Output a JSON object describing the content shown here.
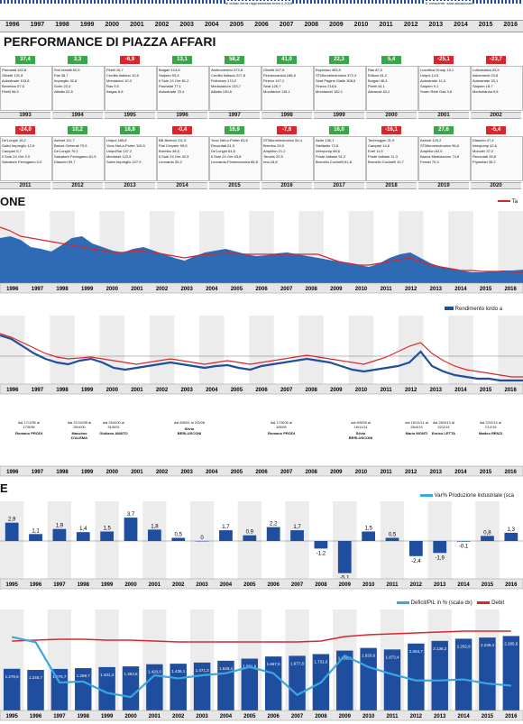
{
  "header_notes": {
    "left": "di dollari verrà rappresentato entro il 2018",
    "right": "E crescente: sarà attualizzato"
  },
  "years_top": [
    "1996",
    "1997",
    "1998",
    "1999",
    "2000",
    "2001",
    "2002",
    "2003",
    "2004",
    "2005",
    "2006",
    "2007",
    "2008",
    "2009",
    "2010",
    "2011",
    "2012",
    "2013",
    "2014",
    "2015",
    "2016"
  ],
  "perf": {
    "title": "PERFORMANCE DI PIAZZA AFFARI",
    "row1": [
      {
        "year": "1993",
        "value": "37,4",
        "pos": true,
        "items": [
          "Parmalat 152,8",
          "Olivetti 131,8",
          "Autostrade 103,8",
          "Benetton 97,6",
          "Pirelli 96,9"
        ]
      },
      {
        "year": "1994",
        "value": "3,3",
        "pos": true,
        "items": [
          "Smi metalli 52,9",
          "Fiat 38,7",
          "Impregilo 32,8",
          "Sorin 23,4",
          "Alitalia 22,8"
        ]
      },
      {
        "year": "1995",
        "value": "-6,9",
        "pos": false,
        "items": [
          "Pirelli 16,7",
          "Credito Italiano 10,5",
          "Mondadori 10,3",
          "Ras 9,5",
          "Italgas 8,8"
        ]
      },
      {
        "year": "1996",
        "value": "13,1",
        "pos": true,
        "items": [
          "Bulgari 124,8",
          "Saipem 93,4",
          "Il Sole 24 Ore 81,2",
          "Parmalat 77,1",
          "Autostrade 70,4"
        ]
      },
      {
        "year": "1997",
        "value": "58,2",
        "pos": true,
        "items": [
          "Ambroveneto 373,8",
          "Credito Italiano 227,8",
          "Fideuram 174,2",
          "Mediolanum 133,7",
          "Alitalia 130,8"
        ]
      },
      {
        "year": "1998",
        "value": "41,0",
        "pos": true,
        "items": [
          "Olivetti 527,6",
          "Finmeccanica 188,5",
          "Fineco 147,1",
          "Seat 126,7",
          "Mondadori 118,1"
        ]
      },
      {
        "year": "1999",
        "value": "22,3",
        "pos": true,
        "items": [
          "Espresso 453,5",
          "STMicroelectronics 372,3",
          "Seat Pagine Gialle 308,5",
          "Fineco 218,6",
          "Mondadori 182,1"
        ]
      },
      {
        "year": "2000",
        "value": "5,4",
        "pos": true,
        "items": [
          "Ras 87,0",
          "Edison 81,2",
          "Bulgari 48,3",
          "Pirelli 44,1",
          "Alleanza 40,2"
        ]
      },
      {
        "year": "2001",
        "value": "-25,1",
        "pos": false,
        "items": [
          "Luxottica Group 19,1",
          "Unipol 14,5",
          "Autostrade 11,0",
          "Saipem 9,1",
          "Snam Rete Gas 3,6"
        ]
      },
      {
        "year": "2002",
        "value": "-23,7",
        "pos": false,
        "items": [
          "Lottomatica 33,5",
          "Italcementi 23,8",
          "Autostrade 20,1",
          "Saipem 18,7",
          "Mediobanca 9,8"
        ]
      }
    ],
    "row2": [
      {
        "year": "2011",
        "value": "-24,0",
        "pos": false,
        "items": [
          "De'Longhi 16,2",
          "Salini Impregilo 12,9",
          "Campari 5,7",
          "Il Sole 24 Ore 2,0",
          "Salvatore Ferragamo 0,0"
        ]
      },
      {
        "year": "2012",
        "value": "10,2",
        "pos": true,
        "items": [
          "Azimut 111,7",
          "Banca Generali 79,5",
          "De'Longhi 76,1",
          "Salvatore Ferragamo 61,5",
          "Diasorin 59,7"
        ]
      },
      {
        "year": "2013",
        "value": "18,8",
        "pos": true,
        "items": [
          "Unipol 185,8",
          "Yoox Net-a-Porter 115,5",
          "UnipolSai 147,2",
          "Mediaset 123,5",
          "Salini Impregilo 107,9"
        ]
      },
      {
        "year": "2014",
        "value": "-0,4",
        "pos": false,
        "items": [
          "BB Biotech 111,5",
          "Fiat Chrysler 99,5",
          "Brembo 48,5",
          "Il Sole 24 Ore 42,5",
          "Leonardo 35,2"
        ]
      },
      {
        "year": "2015",
        "value": "16,9",
        "pos": true,
        "items": [
          "Yoox Net-a-Porter 81,8",
          "Recordati 61,5",
          "De'Longhi 64,8",
          "Il Sole 24 Ore 63,8",
          "Leonardo-Finmeccanica 68,8"
        ]
      },
      {
        "year": "2016",
        "value": "-7,6",
        "pos": false,
        "items": [
          "STMicroelectronics 54,4",
          "Brembo 29,5",
          "Amplifon 21,2",
          "Tenaris 20,5",
          "Ima 18,8"
        ]
      },
      {
        "year": "2017",
        "value": "16,0",
        "pos": true,
        "items": [
          "Astm 136,1",
          "Stellantis 72,8",
          "Interpump 68,6",
          "Poste Italiane 51,2",
          "Brunello Cucinelli 61,8"
        ]
      },
      {
        "year": "2018",
        "value": "-16,1",
        "pos": false,
        "items": [
          "Technogym 31,9",
          "Campari 14,6",
          "Enel 11,5",
          "Poste Italiane 11,3",
          "Brunello Cucinelli 10,7"
        ]
      },
      {
        "year": "2019",
        "value": "27,6",
        "pos": true,
        "items": [
          "Azimut 125,2",
          "STMicroelectronics 96,8",
          "Amplifon 82,5",
          "Banca Mediolanum 74,8",
          "Ferrari 70,4"
        ]
      },
      {
        "year": "2020",
        "value": "-5,4",
        "pos": false,
        "items": [
          "Diasorin 47,4",
          "Interpump 42,6",
          "Moncler 37,2",
          "Recordati 35,8",
          "Prysmian 35,2"
        ]
      }
    ]
  },
  "section2": {
    "title": "ONE",
    "legend": "Ta"
  },
  "section3": {
    "legend": "Rendimento lordo a"
  },
  "governments": [
    {
      "dates": "dal 17/1/95 al 17/5/96",
      "name": "Romano PRODI"
    },
    {
      "dates": "dal 21/10/98 al 25/4/00",
      "name": "Massimo D'ALEMA"
    },
    {
      "dates": "dal 26/4/00 al 31/5/01",
      "name": "Giuliano AMATO"
    },
    {
      "dates": "dal 8/6/01 al 2/5/06",
      "name": "Silvio BERLUSCONI"
    },
    {
      "dates": "dal 17/5/06 al 6/5/08",
      "name": "Romano PRODI"
    },
    {
      "dates": "dal 8/5/08 al 16/11/11",
      "name": "Silvio BERLUSCONI"
    },
    {
      "dates": "dal 16/11/11 al 28/4/13",
      "name": "Mario MONTI"
    },
    {
      "dates": "dal 28/4/13 al 22/2/14",
      "name": "Enrico LETTA"
    },
    {
      "dates": "dal 22/2/14 al 7/12/16",
      "name": "Matteo RENZI"
    }
  ],
  "section4": {
    "title": "E",
    "legend": "Var% Produzione industriale (sca"
  },
  "section5": {
    "legend_left": "Deficit/PIL in % (scala dx)",
    "legend_right": "Debit"
  },
  "years_bottom": [
    "1995",
    "1996",
    "1997",
    "1998",
    "1999",
    "2000",
    "2001",
    "2002",
    "2003",
    "2004",
    "2005",
    "2006",
    "2007",
    "2008",
    "2009",
    "2010",
    "2011",
    "2012",
    "2013",
    "2014",
    "2015",
    "2016"
  ],
  "chart_data": [
    {
      "type": "bar",
      "title": "",
      "ylabel": "Var% Produzione industriale",
      "categories": [
        "1995",
        "1996",
        "1997",
        "1998",
        "1999",
        "2000",
        "2001",
        "2002",
        "2003",
        "2004",
        "2005",
        "2006",
        "2007",
        "2008",
        "2009",
        "2010",
        "2011",
        "2012",
        "2013",
        "2014",
        "2015",
        "2016"
      ],
      "values": [
        2.9,
        1.1,
        1.9,
        1.4,
        1.5,
        3.7,
        1.8,
        0.5,
        0,
        1.7,
        0.9,
        2.2,
        1.7,
        -1.2,
        -5.1,
        1.5,
        0.5,
        -2.4,
        -1.9,
        -0.1,
        0.8,
        1.3
      ],
      "labels": [
        "2,9",
        "1,1",
        "1,9",
        "1,4",
        "1,5",
        "3,7",
        "1,8",
        "0,5",
        "0",
        "1,7",
        "0,9",
        "2,2",
        "1,7",
        "-1,2",
        "-5,1",
        "1,5",
        "0,5",
        "-2,4",
        "-1,9",
        "-0,1",
        "0,8",
        "1,3"
      ],
      "colors": {
        "bar": "#1f4e9e",
        "accent": "#3aa7e0"
      }
    },
    {
      "type": "bar",
      "title": "",
      "categories": [
        "1995",
        "1996",
        "1997",
        "1998",
        "1999",
        "2000",
        "2001",
        "2002",
        "2003",
        "2004",
        "2005",
        "2006",
        "2007",
        "2008",
        "2009",
        "2010",
        "2011",
        "2012",
        "2013",
        "2014",
        "2015",
        "2016"
      ],
      "series": [
        {
          "name": "Debito",
          "values": [
            1279.6,
            1245.7,
            1275.7,
            1299.7,
            1331.3,
            1353.6,
            1420.0,
            1436.1,
            1471.3,
            1526.4,
            1591.6,
            1657.5,
            1677.8,
            1731.6,
            1838.2,
            1920.6,
            1873.4,
            2054.7,
            2136.2,
            2202.9,
            2239.4,
            2285.6
          ]
        },
        {
          "name": "Deficit/PIL in %",
          "values": [
            7.1,
            6.6,
            2.7,
            2.8,
            1.7,
            1.3,
            3.4,
            3.1,
            3.4,
            3.6,
            4.2,
            3.6,
            1.5,
            2.7,
            5.3,
            4.2,
            3.5,
            2.9,
            2.9,
            3.0,
            2.6,
            2.4
          ]
        }
      ],
      "labels": [
        "1.279,6",
        "1.245,7",
        "1.275,7",
        "1.299,7",
        "1.331,3",
        "1.353,6",
        "1.420,0",
        "1.436,1",
        "1.471,3",
        "1.526,4",
        "1.591,6",
        "1.657,5",
        "1.677,8",
        "1.731,6",
        "1.838,2",
        "1.920,6",
        "1.873,4",
        "2.054,7",
        "2.136,2",
        "2.202,9",
        "2.239,4",
        "2.285,6"
      ],
      "colors": {
        "bar": "#1f4e9e",
        "line": "#3aa7e0",
        "red": "#d9262c"
      }
    }
  ]
}
